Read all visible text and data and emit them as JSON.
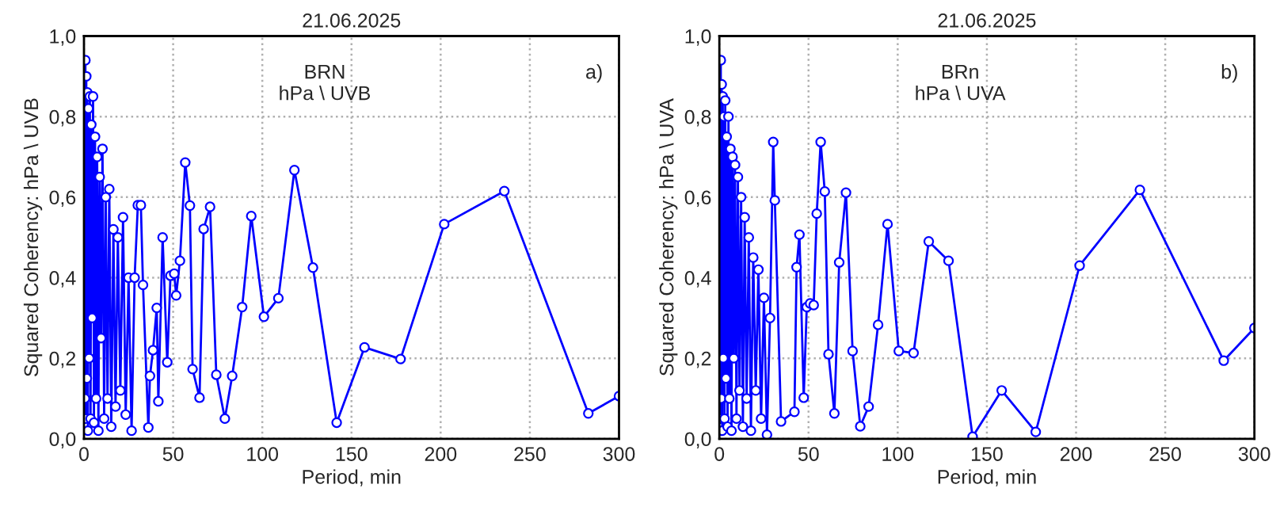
{
  "chart_data": [
    {
      "type": "line",
      "title": "21.06.2025",
      "xlabel": "Period, min",
      "ylabel": "Squared Coherency: hPa \\ UVB",
      "annotations": [
        "BRN\nhPa \\ UVB",
        "a)"
      ],
      "xlim": [
        0,
        300
      ],
      "ylim": [
        0,
        1
      ],
      "xticks": [
        0,
        50,
        100,
        150,
        200,
        250,
        300
      ],
      "yticks": [
        {
          "value": 0,
          "label": "0,0"
        },
        {
          "value": 0.2,
          "label": "0,2"
        },
        {
          "value": 0.4,
          "label": "0,4"
        },
        {
          "value": 0.6,
          "label": "0,6"
        },
        {
          "value": 0.8,
          "label": "0,8"
        },
        {
          "value": 1,
          "label": "1,0"
        }
      ],
      "grid": true,
      "marker": "circle",
      "line_style": "solid",
      "legend": false,
      "series": [
        {
          "color": "#0000ff",
          "x": [
            0.5,
            0.8,
            1.0,
            1.3,
            1.6,
            1.9,
            2.2,
            2.5,
            2.9,
            3.3,
            3.7,
            4.1,
            4.6,
            5.1,
            5.6,
            6.2,
            6.8,
            7.4,
            8.1,
            8.8,
            9.6,
            10.4,
            11.3,
            12.2,
            13.2,
            14.2,
            15.3,
            16.5,
            17.7,
            19.0,
            20.4,
            21.9,
            23.4,
            25.0,
            26.7,
            28.4,
            30.2,
            31.9,
            33.1,
            36.1,
            37.0,
            38.7,
            40.8,
            41.7,
            44.1,
            46.7,
            48.5,
            50.6,
            51.7,
            53.8,
            56.8,
            59.4,
            60.9,
            64.8,
            67.1,
            70.7,
            74.2,
            79.0,
            83.1,
            88.7,
            93.8,
            100.9,
            109.0,
            118.0,
            128.4,
            141.7,
            157.3,
            177.5,
            202.0,
            235.7,
            282.8,
            300.0
          ],
          "values": [
            0.1,
            0.94,
            0.05,
            0.9,
            0.15,
            0.86,
            0.02,
            0.82,
            0.2,
            0.85,
            0.05,
            0.78,
            0.3,
            0.85,
            0.04,
            0.75,
            0.1,
            0.7,
            0.02,
            0.65,
            0.25,
            0.72,
            0.05,
            0.6,
            0.1,
            0.62,
            0.03,
            0.52,
            0.08,
            0.5,
            0.12,
            0.55,
            0.06,
            0.4,
            0.02,
            0.4,
            0.58,
            0.58,
            0.382,
            0.028,
            0.156,
            0.22,
            0.325,
            0.093,
            0.5,
            0.19,
            0.405,
            0.41,
            0.356,
            0.442,
            0.686,
            0.579,
            0.173,
            0.102,
            0.521,
            0.576,
            0.159,
            0.05,
            0.156,
            0.327,
            0.553,
            0.303,
            0.349,
            0.667,
            0.425,
            0.04,
            0.227,
            0.198,
            0.533,
            0.615,
            0.063,
            0.106
          ]
        }
      ]
    },
    {
      "type": "line",
      "title": "21.06.2025",
      "xlabel": "Period, min",
      "ylabel": "Squared Coherency: hPa \\ UVA",
      "annotations": [
        "BRn\nhPa \\ UVA",
        "b)"
      ],
      "xlim": [
        0,
        300
      ],
      "ylim": [
        0,
        1
      ],
      "xticks": [
        0,
        50,
        100,
        150,
        200,
        250,
        300
      ],
      "yticks": [
        {
          "value": 0,
          "label": "0,0"
        },
        {
          "value": 0.2,
          "label": "0,2"
        },
        {
          "value": 0.4,
          "label": "0,4"
        },
        {
          "value": 0.6,
          "label": "0,6"
        },
        {
          "value": 0.8,
          "label": "0,8"
        },
        {
          "value": 1,
          "label": "1,0"
        }
      ],
      "grid": true,
      "marker": "circle",
      "line_style": "solid",
      "legend": false,
      "series": [
        {
          "color": "#0000ff",
          "x": [
            0.5,
            0.8,
            1.0,
            1.3,
            1.6,
            1.9,
            2.2,
            2.5,
            2.9,
            3.3,
            3.7,
            4.1,
            4.6,
            5.1,
            5.6,
            6.2,
            6.8,
            7.4,
            8.1,
            8.8,
            9.6,
            10.4,
            11.3,
            12.2,
            13.2,
            14.2,
            15.3,
            16.5,
            17.7,
            19.0,
            20.4,
            21.9,
            23.4,
            25.0,
            26.7,
            28.4,
            30.2,
            31.1,
            34.6,
            42.1,
            43.3,
            44.9,
            47.3,
            49.0,
            50.9,
            52.9,
            54.6,
            56.8,
            59.1,
            61.2,
            64.5,
            67.2,
            71.0,
            74.7,
            79.0,
            83.7,
            89.0,
            94.3,
            100.6,
            108.9,
            117.4,
            128.5,
            142.0,
            158.3,
            177.4,
            202.0,
            235.8,
            282.8,
            300.0
          ],
          "values": [
            0.05,
            0.94,
            0.1,
            0.88,
            0.02,
            0.85,
            0.2,
            0.8,
            0.05,
            0.84,
            0.15,
            0.75,
            0.03,
            0.8,
            0.1,
            0.72,
            0.02,
            0.7,
            0.2,
            0.68,
            0.05,
            0.65,
            0.12,
            0.6,
            0.03,
            0.55,
            0.1,
            0.5,
            0.02,
            0.45,
            0.12,
            0.42,
            0.05,
            0.35,
            0.01,
            0.3,
            0.737,
            0.592,
            0.043,
            0.067,
            0.426,
            0.507,
            0.102,
            0.327,
            0.336,
            0.332,
            0.559,
            0.737,
            0.614,
            0.21,
            0.063,
            0.438,
            0.611,
            0.218,
            0.031,
            0.08,
            0.283,
            0.533,
            0.218,
            0.213,
            0.49,
            0.442,
            0.005,
            0.12,
            0.017,
            0.43,
            0.618,
            0.194,
            0.275
          ]
        }
      ]
    }
  ]
}
